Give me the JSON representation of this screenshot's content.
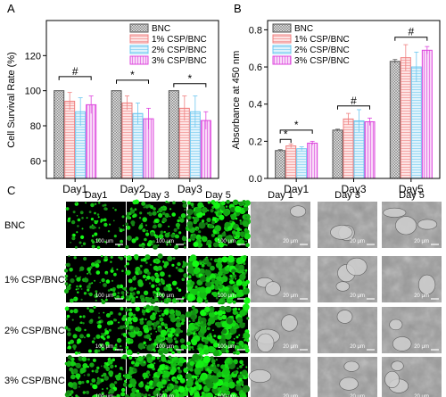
{
  "panels": [
    {
      "letter": "A",
      "chart_data": {
        "type": "bar",
        "title": "",
        "xlabel": "",
        "ylabel": "Cell Survival Rate (%)",
        "ylim": [
          50,
          140
        ],
        "yticks": [
          "60",
          "80",
          "100",
          "120"
        ],
        "categories": [
          "Day1",
          "Day2",
          "Day3"
        ],
        "series": [
          {
            "name": "BNC",
            "values": [
              100,
              100,
              100
            ],
            "errors": [
              0,
              0,
              0
            ]
          },
          {
            "name": "1% CSP/BNC",
            "values": [
              94,
              93,
              90
            ],
            "errors": [
              5,
              4,
              7
            ]
          },
          {
            "name": "2% CSP/BNC",
            "values": [
              88,
              87,
              88
            ],
            "errors": [
              8,
              6,
              9
            ]
          },
          {
            "name": "3% CSP/BNC",
            "values": [
              92,
              84,
              83
            ],
            "errors": [
              5,
              6,
              5
            ]
          }
        ],
        "legend": "top-right",
        "grid": false,
        "annotations": [
          {
            "label": "#",
            "category": 0
          },
          {
            "label": "*",
            "category": 1
          },
          {
            "label": "*",
            "category": 2
          }
        ]
      }
    },
    {
      "letter": "B",
      "chart_data": {
        "type": "bar",
        "title": "",
        "xlabel": "",
        "ylabel": "Absorbance at 450 nm",
        "ylim": [
          0,
          0.85
        ],
        "yticks": [
          "0.0",
          "0.2",
          "0.4",
          "0.6",
          "0.8"
        ],
        "categories": [
          "Day1",
          "Day3",
          "Day5"
        ],
        "series": [
          {
            "name": "BNC",
            "values": [
              0.15,
              0.26,
              0.63
            ],
            "errors": [
              0.005,
              0.005,
              0.01
            ]
          },
          {
            "name": "1% CSP/BNC",
            "values": [
              0.175,
              0.32,
              0.65
            ],
            "errors": [
              0.01,
              0.03,
              0.07
            ]
          },
          {
            "name": "2% CSP/BNC",
            "values": [
              0.16,
              0.31,
              0.6
            ],
            "errors": [
              0.01,
              0.06,
              0.08
            ]
          },
          {
            "name": "3% CSP/BNC",
            "values": [
              0.19,
              0.305,
              0.69
            ],
            "errors": [
              0.01,
              0.02,
              0.02
            ]
          }
        ],
        "legend": "top-left",
        "grid": false,
        "annotations": [
          {
            "label": "*",
            "category": 0
          },
          {
            "label": "*",
            "category": 0
          },
          {
            "label": "#",
            "category": 1
          },
          {
            "label": "#",
            "category": 2
          }
        ]
      }
    }
  ],
  "series_colors": [
    "#555555",
    "#f08080",
    "#6ec8f0",
    "#dd44dd"
  ],
  "series_fills": [
    "#d8d8d8",
    "#fde3e3",
    "#dff3fc",
    "#f8d8f8"
  ],
  "panel_c": {
    "letter": "C",
    "fluor_columns": [
      "Day1",
      "Day 3",
      "Day 5"
    ],
    "sem_columns": [
      "Day 1",
      "Day 3",
      "Day 5"
    ],
    "rows": [
      "BNC",
      "1% CSP/BNC",
      "2% CSP/BNC",
      "3% CSP/BNC"
    ],
    "fluor_scale": "100 μm",
    "sem_scale": "20 μm",
    "fluor_density": [
      0.2,
      0.5,
      0.85,
      0.35,
      0.55,
      0.95,
      0.35,
      0.75,
      0.95,
      0.55,
      0.85,
      1.0
    ]
  }
}
